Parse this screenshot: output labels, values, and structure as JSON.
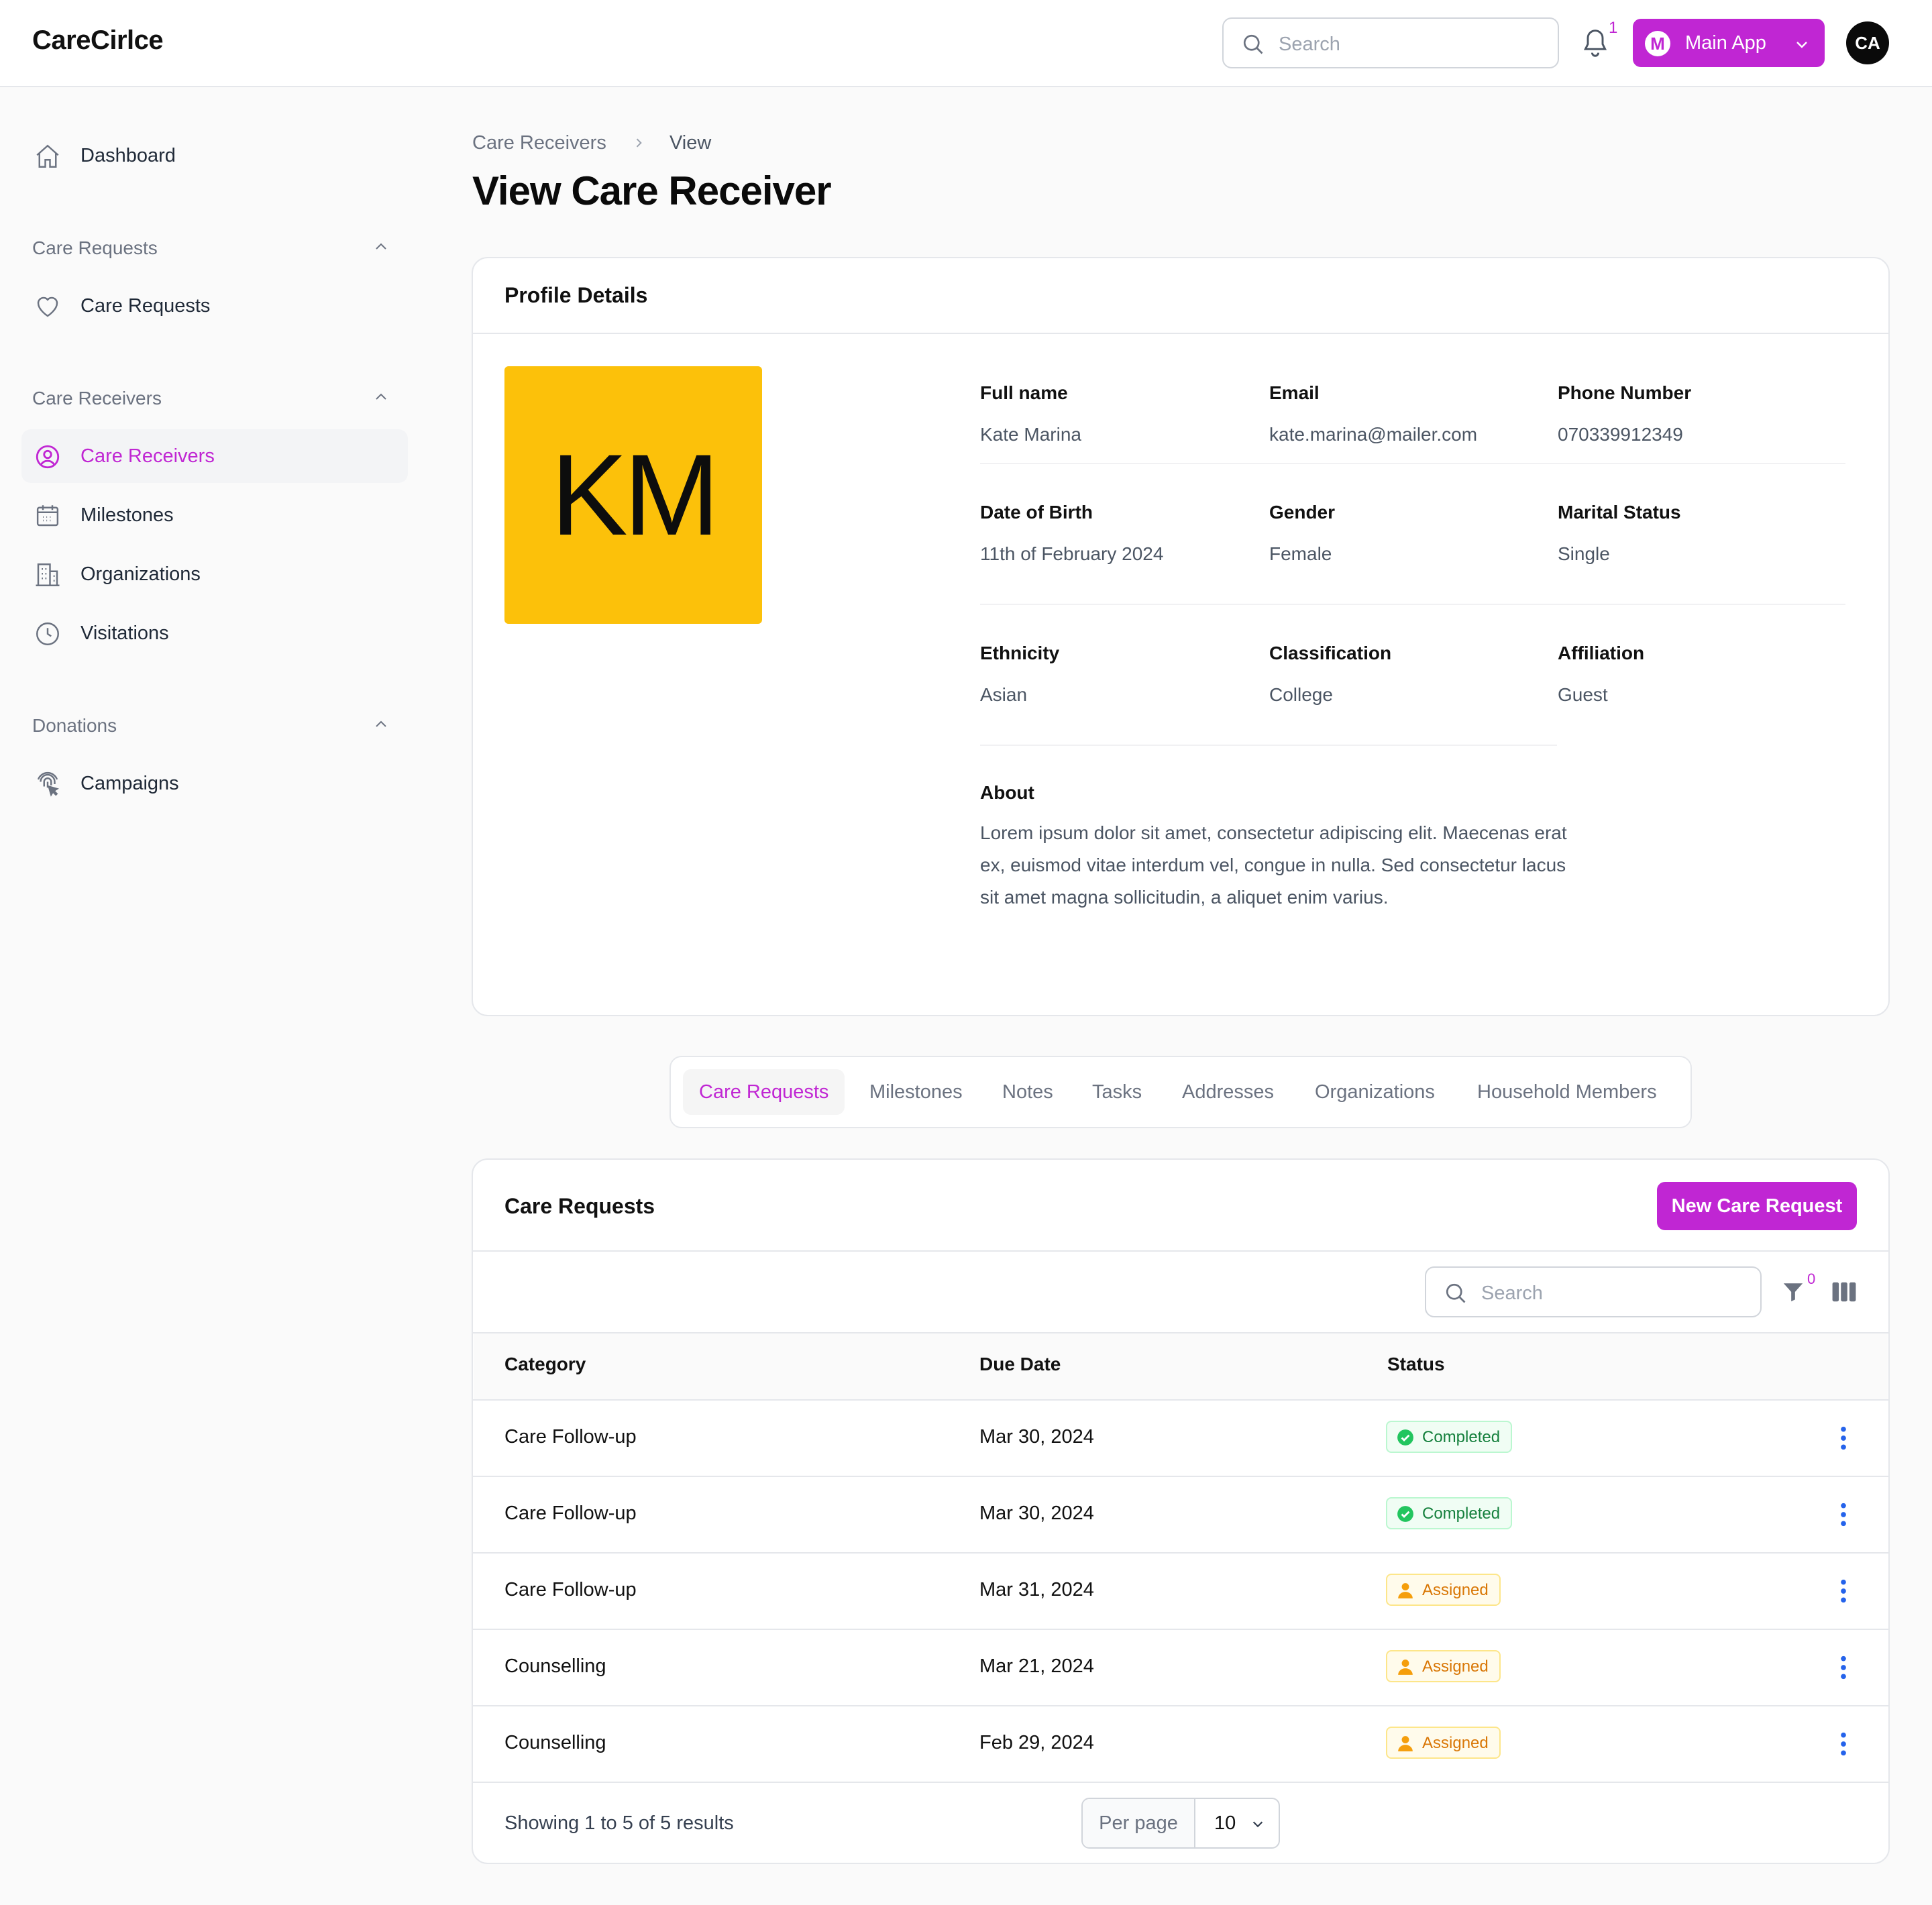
{
  "app": {
    "brand": "CareCirlce"
  },
  "topbar": {
    "search_placeholder": "Search",
    "notification_count": "1",
    "app_switch_initial": "M",
    "app_switch_label": "Main App",
    "user_initials": "CA"
  },
  "sidebar": {
    "dashboard": "Dashboard",
    "groups": [
      {
        "label": "Care Requests",
        "items": [
          "Care Requests"
        ]
      },
      {
        "label": "Care Receivers",
        "items": [
          "Care Receivers",
          "Milestones",
          "Organizations",
          "Visitations"
        ]
      },
      {
        "label": "Donations",
        "items": [
          "Campaigns"
        ]
      }
    ],
    "active_item": "Care Receivers",
    "icons": [
      "home-icon",
      "heart-icon",
      "user-circle-icon",
      "calendar-icon",
      "building-icon",
      "clock-icon",
      "fingerprint-icon"
    ]
  },
  "breadcrumb": {
    "parent": "Care Receivers",
    "current": "View"
  },
  "page": {
    "title": "View Care Receiver"
  },
  "profile": {
    "heading": "Profile Details",
    "initials": "KM",
    "avatar_color": "#fcc10a",
    "fields": [
      {
        "label": "Full name",
        "value": "Kate Marina"
      },
      {
        "label": "Email",
        "value": "kate.marina@mailer.com"
      },
      {
        "label": "Phone Number",
        "value": "070339912349"
      },
      {
        "label": "Date of Birth",
        "value": "11th of February 2024"
      },
      {
        "label": "Gender",
        "value": "Female"
      },
      {
        "label": "Marital Status",
        "value": "Single"
      },
      {
        "label": "Ethnicity",
        "value": "Asian"
      },
      {
        "label": "Classification",
        "value": "College"
      },
      {
        "label": "Affiliation",
        "value": "Guest"
      }
    ],
    "about_label": "About",
    "about_text": "Lorem ipsum dolor sit amet, consectetur adipiscing elit. Maecenas erat ex, euismod vitae interdum vel, congue in nulla. Sed consectetur lacus sit amet magna sollicitudin, a aliquet enim varius."
  },
  "tabs": [
    "Care Requests",
    "Milestones",
    "Notes",
    "Tasks",
    "Addresses",
    "Organizations",
    "Household Members"
  ],
  "active_tab": "Care Requests",
  "care_requests": {
    "heading": "Care Requests",
    "new_button": "New Care Request",
    "search_placeholder": "Search",
    "filter_count": "0",
    "columns": [
      "Category",
      "Due Date",
      "Status"
    ],
    "rows": [
      {
        "category": "Care Follow-up",
        "due": "Mar 30, 2024",
        "status": "Completed"
      },
      {
        "category": "Care Follow-up",
        "due": "Mar 30, 2024",
        "status": "Completed"
      },
      {
        "category": "Care Follow-up",
        "due": "Mar 31, 2024",
        "status": "Assigned"
      },
      {
        "category": "Counselling",
        "due": "Mar 21, 2024",
        "status": "Assigned"
      },
      {
        "category": "Counselling",
        "due": "Feb 29, 2024",
        "status": "Assigned"
      }
    ],
    "footer": "Showing 1 to 5 of 5 results",
    "per_page_label": "Per page",
    "per_page_value": "10"
  },
  "colors": {
    "accent": "#c026d3",
    "completed": "#15803d",
    "assigned": "#d97706"
  }
}
